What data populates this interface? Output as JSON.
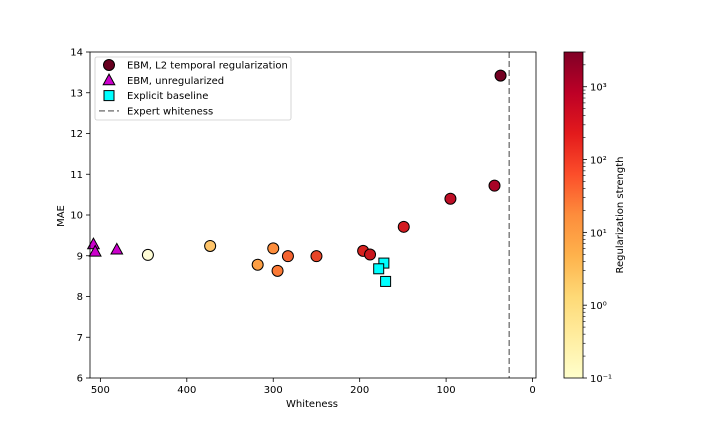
{
  "chart_data": {
    "type": "scatter",
    "xlabel": "Whiteness",
    "ylabel": "MAE",
    "xlim": [
      512,
      -4
    ],
    "ylim": [
      6,
      14
    ],
    "x_ticks": [
      500,
      400,
      300,
      200,
      100,
      0
    ],
    "y_ticks": [
      6,
      7,
      8,
      9,
      10,
      11,
      12,
      13,
      14
    ],
    "x_tick_labels": [
      "500",
      "400",
      "300",
      "200",
      "100",
      "0"
    ],
    "y_tick_labels": [
      "6",
      "7",
      "8",
      "9",
      "10",
      "11",
      "12",
      "13",
      "14"
    ],
    "legend_position": "top-left",
    "series": [
      {
        "name": "EBM, L2 temporal regularization",
        "marker": "circle",
        "legend_color": "#67001f",
        "points": [
          {
            "x": 445,
            "y": 9.02,
            "color": "#fffdd6"
          },
          {
            "x": 373,
            "y": 9.24,
            "color": "#fec46a"
          },
          {
            "x": 318,
            "y": 8.78,
            "color": "#fd9f44"
          },
          {
            "x": 300,
            "y": 9.18,
            "color": "#fd8d3c"
          },
          {
            "x": 295,
            "y": 8.63,
            "color": "#fc7a35"
          },
          {
            "x": 283,
            "y": 8.99,
            "color": "#f46330"
          },
          {
            "x": 250,
            "y": 8.99,
            "color": "#e84528"
          },
          {
            "x": 196,
            "y": 9.12,
            "color": "#d7211f"
          },
          {
            "x": 188,
            "y": 9.03,
            "color": "#c9161d"
          },
          {
            "x": 149,
            "y": 9.71,
            "color": "#d31c21"
          },
          {
            "x": 95,
            "y": 10.4,
            "color": "#be0f26"
          },
          {
            "x": 44,
            "y": 10.72,
            "color": "#a80326"
          },
          {
            "x": 37,
            "y": 13.42,
            "color": "#740022"
          }
        ]
      },
      {
        "name": "EBM, unregularized",
        "marker": "triangle",
        "legend_color": "#cc00cc",
        "points": [
          {
            "x": 508,
            "y": 9.28
          },
          {
            "x": 506,
            "y": 9.1
          },
          {
            "x": 481,
            "y": 9.15
          }
        ]
      },
      {
        "name": "Explicit baseline",
        "marker": "square",
        "legend_color": "#00ffff",
        "points": [
          {
            "x": 172,
            "y": 8.82
          },
          {
            "x": 178,
            "y": 8.68
          },
          {
            "x": 170,
            "y": 8.37
          }
        ]
      }
    ],
    "reference_line": {
      "name": "Expert whiteness",
      "x": 27,
      "color": "#808080",
      "style": "dashed"
    },
    "colorbar": {
      "label": "Regularization strength",
      "scale": "log",
      "range": [
        0.1,
        3000
      ],
      "ticks": [
        0.1,
        1,
        10,
        100,
        1000
      ],
      "tick_labels": [
        "10⁻¹",
        "10⁰",
        "10¹",
        "10²",
        "10³"
      ],
      "colormap": "YlOrRd"
    }
  }
}
